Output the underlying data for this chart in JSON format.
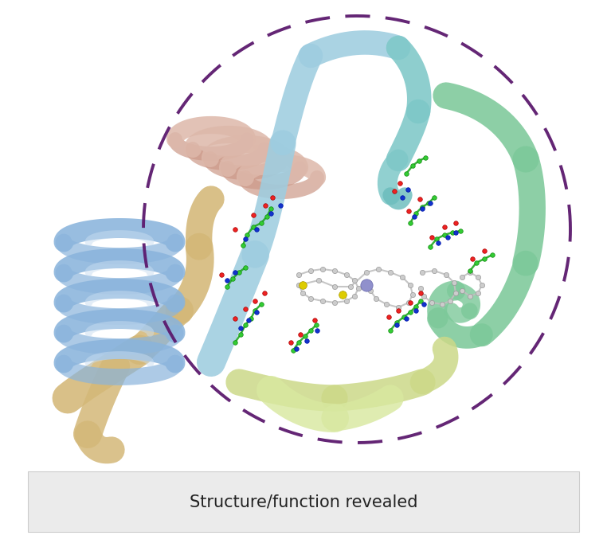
{
  "figure_width": 7.62,
  "figure_height": 6.92,
  "dpi": 100,
  "bg_color": "#ffffff",
  "circle_color": "#5c1a6e",
  "circle_linewidth": 2.8,
  "label_box_color": "#ebebeb",
  "label_text": "Structure/function revealed",
  "label_text_color": "#222222",
  "label_fontsize": 15,
  "colors": {
    "blue_helix": "#8ab4dc",
    "blue_helix_inner": "#c8ddf0",
    "salmon_helix": "#cc9988",
    "salmon_helix_light": "#ddb8aa",
    "light_blue_ribbon": "#9ecde0",
    "cyan_ribbon": "#7ec8c8",
    "green_ribbon": "#7dc99a",
    "yellow_green_ribbon": "#ccd988",
    "lime_ribbon": "#d8e8a0",
    "tan_ribbon": "#d4b878",
    "tan_ribbon2": "#c8a860",
    "green_atoms": "#33cc33",
    "red_atoms": "#ee2222",
    "blue_atoms": "#1133cc",
    "gray_atoms": "#c0c0c0",
    "gray_bonds": "#bbbbbb",
    "yellow_atom": "#ddcc00",
    "purple_atom": "#9090cc"
  }
}
